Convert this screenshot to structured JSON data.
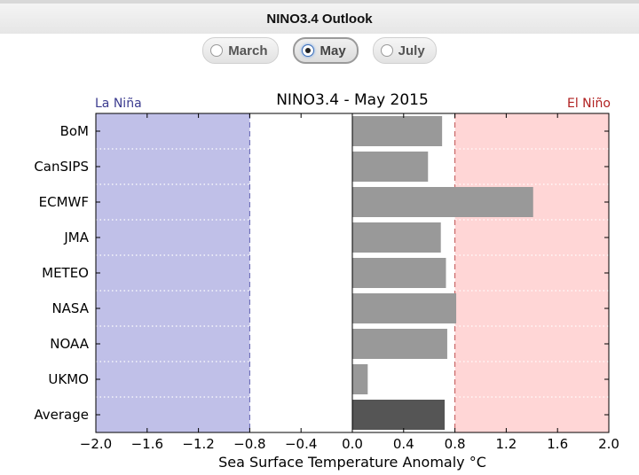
{
  "header": {
    "title": "NINO3.4 Outlook"
  },
  "month_selector": {
    "options": [
      {
        "label": "March",
        "selected": false
      },
      {
        "label": "May",
        "selected": true
      },
      {
        "label": "July",
        "selected": false
      }
    ]
  },
  "chart_data": {
    "type": "bar",
    "orientation": "horizontal",
    "title": "NINO3.4 - May 2015",
    "xlabel": "Sea Surface Temperature Anomaly °C",
    "ylabel": "",
    "xlim": [
      -2.0,
      2.0
    ],
    "xticks": [
      -2.0,
      -1.6,
      -1.2,
      -0.8,
      -0.4,
      0.0,
      0.4,
      0.8,
      1.2,
      1.6,
      2.0
    ],
    "xtick_labels": [
      "−2.0",
      "−1.6",
      "−1.2",
      "−0.8",
      "−0.4",
      "0.0",
      "0.4",
      "0.8",
      "1.2",
      "1.6",
      "2.0"
    ],
    "categories": [
      "BoM",
      "CanSIPS",
      "ECMWF",
      "JMA",
      "METEO",
      "NASA",
      "NOAA",
      "UKMO",
      "Average"
    ],
    "values": [
      0.7,
      0.59,
      1.41,
      0.69,
      0.73,
      0.81,
      0.74,
      0.12,
      0.72
    ],
    "la_nina": {
      "label": "La Niña",
      "threshold": -0.8,
      "color": "#c0c0e8",
      "label_color": "#3b3b8f"
    },
    "el_nino": {
      "label": "El Niño",
      "threshold": 0.8,
      "color": "#ffd6d6",
      "label_color": "#b02020"
    },
    "bar_color": "#999999",
    "average_bar_color": "#555555",
    "grid": "horizontal dotted",
    "legend": "none"
  }
}
